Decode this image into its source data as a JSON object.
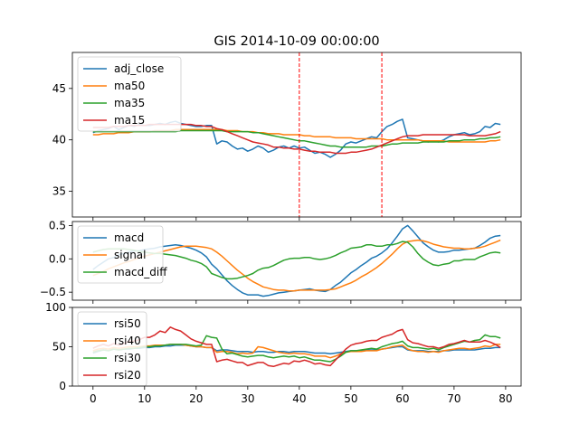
{
  "title": "GIS 2014-10-09 00:00:00",
  "colors": {
    "blue": "#1f77b4",
    "orange": "#ff7f0e",
    "green": "#2ca02c",
    "red": "#d62728"
  },
  "chart_data": [
    {
      "type": "line",
      "panel": "price",
      "xlim": [
        -4,
        83
      ],
      "ylim": [
        32.5,
        48.5
      ],
      "yticks": [
        35,
        40,
        45
      ],
      "xticks": [
        0,
        10,
        20,
        30,
        40,
        50,
        60,
        70,
        80
      ],
      "xtick_labels_visible": false,
      "vlines": [
        40,
        56
      ],
      "vline_color": "#ff0000",
      "legend_position": "upper-left",
      "series": [
        {
          "name": "adj_close",
          "color": "#1f77b4",
          "values": [
            40.7,
            40.9,
            41.0,
            41.1,
            41.3,
            41.0,
            41.2,
            41.4,
            41.3,
            41.5,
            41.4,
            41.4,
            41.5,
            41.6,
            41.5,
            41.7,
            41.8,
            41.6,
            41.5,
            41.4,
            41.3,
            41.3,
            41.4,
            41.4,
            39.6,
            39.9,
            39.8,
            39.4,
            39.1,
            39.2,
            38.9,
            39.1,
            39.4,
            39.2,
            38.8,
            39.0,
            39.3,
            39.4,
            39.2,
            39.4,
            39.2,
            39.3,
            39.0,
            38.7,
            38.8,
            38.6,
            38.3,
            38.6,
            39.0,
            39.6,
            39.8,
            39.7,
            39.9,
            40.1,
            40.3,
            40.2,
            40.8,
            41.3,
            41.5,
            41.8,
            42.0,
            40.2,
            40.1,
            40.0,
            39.9,
            39.8,
            39.9,
            39.8,
            40.0,
            40.3,
            40.5,
            40.6,
            40.7,
            40.5,
            40.6,
            40.8,
            41.3,
            41.2,
            41.6,
            41.5
          ]
        },
        {
          "name": "ma50",
          "color": "#ff7f0e",
          "values": [
            40.5,
            40.5,
            40.6,
            40.6,
            40.6,
            40.7,
            40.7,
            40.7,
            40.8,
            40.8,
            40.8,
            40.8,
            40.9,
            40.9,
            40.9,
            40.9,
            41.0,
            41.0,
            41.0,
            41.0,
            41.0,
            41.0,
            41.0,
            41.0,
            41.0,
            41.0,
            40.9,
            40.9,
            40.9,
            40.8,
            40.8,
            40.8,
            40.7,
            40.7,
            40.6,
            40.6,
            40.6,
            40.5,
            40.5,
            40.5,
            40.5,
            40.4,
            40.4,
            40.3,
            40.3,
            40.3,
            40.3,
            40.2,
            40.2,
            40.2,
            40.2,
            40.1,
            40.1,
            40.1,
            40.1,
            40.1,
            40.1,
            40.0,
            40.0,
            40.0,
            40.0,
            40.0,
            40.0,
            40.0,
            39.9,
            39.9,
            39.9,
            39.9,
            39.9,
            39.8,
            39.8,
            39.8,
            39.8,
            39.8,
            39.8,
            39.8,
            39.8,
            39.9,
            39.9,
            40.0
          ]
        },
        {
          "name": "ma35",
          "color": "#2ca02c",
          "values": [
            40.8,
            40.8,
            40.8,
            40.8,
            40.8,
            40.8,
            40.8,
            40.8,
            40.8,
            40.8,
            40.8,
            40.8,
            40.8,
            40.8,
            40.8,
            40.8,
            40.8,
            40.9,
            40.9,
            40.9,
            40.9,
            40.9,
            40.9,
            40.9,
            40.9,
            40.9,
            40.8,
            40.8,
            40.8,
            40.8,
            40.8,
            40.7,
            40.7,
            40.6,
            40.5,
            40.4,
            40.3,
            40.2,
            40.1,
            40.0,
            39.9,
            39.9,
            39.8,
            39.7,
            39.6,
            39.5,
            39.4,
            39.4,
            39.3,
            39.3,
            39.3,
            39.3,
            39.3,
            39.3,
            39.4,
            39.4,
            39.4,
            39.5,
            39.6,
            39.6,
            39.7,
            39.7,
            39.7,
            39.7,
            39.8,
            39.8,
            39.8,
            39.8,
            39.8,
            39.9,
            39.9,
            39.9,
            40.0,
            40.0,
            40.0,
            40.1,
            40.1,
            40.2,
            40.2,
            40.3
          ]
        },
        {
          "name": "ma15",
          "color": "#d62728",
          "values": [
            41.2,
            41.2,
            41.2,
            41.2,
            41.3,
            41.3,
            41.3,
            41.4,
            41.4,
            41.4,
            41.4,
            41.5,
            41.5,
            41.5,
            41.5,
            41.5,
            41.5,
            41.5,
            41.5,
            41.5,
            41.4,
            41.4,
            41.3,
            41.3,
            41.1,
            41.0,
            40.8,
            40.6,
            40.4,
            40.2,
            40.0,
            39.8,
            39.7,
            39.6,
            39.5,
            39.3,
            39.3,
            39.2,
            39.2,
            39.1,
            39.1,
            39.0,
            38.9,
            38.9,
            38.8,
            38.8,
            38.8,
            38.7,
            38.7,
            38.7,
            38.8,
            38.8,
            38.9,
            39.0,
            39.1,
            39.3,
            39.5,
            39.7,
            39.9,
            40.1,
            40.3,
            40.4,
            40.4,
            40.4,
            40.5,
            40.5,
            40.5,
            40.5,
            40.5,
            40.5,
            40.5,
            40.5,
            40.5,
            40.4,
            40.4,
            40.4,
            40.4,
            40.5,
            40.6,
            40.8
          ]
        }
      ]
    },
    {
      "type": "line",
      "panel": "macd",
      "xlim": [
        -4,
        83
      ],
      "ylim": [
        -0.62,
        0.56
      ],
      "yticks": [
        -0.5,
        0.0,
        0.5
      ],
      "ytick_labels": [
        "−0.5",
        "0.0",
        "0.5"
      ],
      "xticks": [
        0,
        10,
        20,
        30,
        40,
        50,
        60,
        70,
        80
      ],
      "xtick_labels_visible": false,
      "legend_position": "upper-left",
      "series": [
        {
          "name": "macd",
          "color": "#1f77b4",
          "values": [
            -0.16,
            -0.1,
            -0.05,
            0.0,
            0.02,
            0.06,
            0.08,
            0.1,
            0.12,
            0.12,
            0.14,
            0.15,
            0.16,
            0.18,
            0.19,
            0.2,
            0.21,
            0.2,
            0.18,
            0.16,
            0.13,
            0.09,
            0.03,
            -0.08,
            -0.15,
            -0.24,
            -0.33,
            -0.4,
            -0.46,
            -0.51,
            -0.54,
            -0.54,
            -0.54,
            -0.56,
            -0.55,
            -0.53,
            -0.51,
            -0.5,
            -0.49,
            -0.48,
            -0.47,
            -0.46,
            -0.45,
            -0.47,
            -0.48,
            -0.49,
            -0.46,
            -0.4,
            -0.35,
            -0.28,
            -0.21,
            -0.16,
            -0.1,
            -0.05,
            0.01,
            0.04,
            0.09,
            0.15,
            0.24,
            0.34,
            0.45,
            0.5,
            0.42,
            0.33,
            0.24,
            0.18,
            0.13,
            0.1,
            0.1,
            0.11,
            0.13,
            0.13,
            0.14,
            0.15,
            0.16,
            0.2,
            0.25,
            0.31,
            0.34,
            0.35
          ]
        },
        {
          "name": "signal",
          "color": "#ff7f0e",
          "values": [
            -0.25,
            -0.22,
            -0.19,
            -0.15,
            -0.12,
            -0.09,
            -0.06,
            -0.04,
            -0.01,
            0.02,
            0.04,
            0.06,
            0.08,
            0.1,
            0.12,
            0.14,
            0.16,
            0.18,
            0.19,
            0.19,
            0.19,
            0.18,
            0.17,
            0.15,
            0.1,
            0.04,
            -0.03,
            -0.1,
            -0.17,
            -0.23,
            -0.29,
            -0.34,
            -0.38,
            -0.42,
            -0.44,
            -0.46,
            -0.47,
            -0.47,
            -0.48,
            -0.48,
            -0.47,
            -0.47,
            -0.47,
            -0.47,
            -0.47,
            -0.47,
            -0.46,
            -0.45,
            -0.42,
            -0.39,
            -0.36,
            -0.32,
            -0.27,
            -0.23,
            -0.18,
            -0.13,
            -0.07,
            0.0,
            0.07,
            0.15,
            0.22,
            0.26,
            0.27,
            0.28,
            0.27,
            0.25,
            0.22,
            0.2,
            0.18,
            0.17,
            0.16,
            0.16,
            0.15,
            0.15,
            0.16,
            0.17,
            0.19,
            0.22,
            0.25,
            0.28
          ]
        },
        {
          "name": "macd_diff",
          "color": "#2ca02c",
          "values": [
            0.1,
            0.12,
            0.14,
            0.15,
            0.15,
            0.15,
            0.15,
            0.14,
            0.13,
            0.11,
            0.1,
            0.09,
            0.08,
            0.08,
            0.07,
            0.06,
            0.05,
            0.03,
            0.01,
            -0.02,
            -0.04,
            -0.07,
            -0.12,
            -0.22,
            -0.25,
            -0.28,
            -0.3,
            -0.3,
            -0.29,
            -0.27,
            -0.25,
            -0.22,
            -0.17,
            -0.14,
            -0.13,
            -0.1,
            -0.06,
            -0.02,
            0.0,
            0.01,
            0.01,
            0.02,
            0.02,
            0.0,
            -0.01,
            0.0,
            0.02,
            0.05,
            0.09,
            0.12,
            0.16,
            0.17,
            0.18,
            0.21,
            0.21,
            0.19,
            0.19,
            0.21,
            0.21,
            0.23,
            0.26,
            0.25,
            0.18,
            0.08,
            0.0,
            -0.05,
            -0.09,
            -0.1,
            -0.08,
            -0.07,
            -0.03,
            -0.03,
            -0.01,
            -0.01,
            -0.01,
            0.03,
            0.06,
            0.09,
            0.1,
            0.09
          ]
        }
      ]
    },
    {
      "type": "line",
      "panel": "rsi",
      "xlim": [
        -4,
        83
      ],
      "ylim": [
        0,
        100
      ],
      "yticks": [
        0,
        50,
        100
      ],
      "xticks": [
        0,
        10,
        20,
        30,
        40,
        50,
        60,
        70,
        80
      ],
      "xtick_labels": [
        "0",
        "10",
        "20",
        "30",
        "40",
        "50",
        "60",
        "70",
        "80"
      ],
      "legend_position": "upper-left",
      "series": [
        {
          "name": "rsi50",
          "color": "#1f77b4",
          "values": [
            42,
            44,
            46,
            45,
            47,
            46,
            47,
            47,
            48,
            48,
            49,
            49,
            50,
            50,
            51,
            51,
            52,
            52,
            52,
            51,
            50,
            50,
            49,
            49,
            45,
            46,
            46,
            45,
            44,
            44,
            44,
            43,
            44,
            44,
            43,
            43,
            44,
            44,
            43,
            44,
            44,
            44,
            43,
            42,
            42,
            42,
            41,
            42,
            43,
            44,
            45,
            45,
            45,
            46,
            46,
            46,
            47,
            48,
            49,
            50,
            50,
            46,
            45,
            45,
            45,
            44,
            44,
            44,
            45,
            45,
            46,
            46,
            46,
            46,
            46,
            47,
            48,
            48,
            49,
            49
          ]
        },
        {
          "name": "rsi40",
          "color": "#ff7f0e",
          "values": [
            45,
            47,
            48,
            47,
            49,
            48,
            49,
            50,
            50,
            50,
            51,
            51,
            52,
            52,
            52,
            53,
            53,
            53,
            52,
            51,
            50,
            50,
            49,
            49,
            43,
            44,
            44,
            43,
            41,
            42,
            41,
            42,
            50,
            49,
            47,
            45,
            43,
            42,
            41,
            42,
            41,
            41,
            40,
            38,
            38,
            38,
            36,
            38,
            41,
            43,
            44,
            44,
            44,
            45,
            45,
            45,
            47,
            48,
            50,
            51,
            52,
            47,
            45,
            44,
            44,
            43,
            44,
            43,
            45,
            46,
            47,
            48,
            48,
            47,
            48,
            49,
            51,
            50,
            53,
            53
          ]
        },
        {
          "name": "rsi30",
          "color": "#2ca02c",
          "values": [
            43,
            45,
            46,
            45,
            47,
            46,
            47,
            48,
            48,
            49,
            50,
            50,
            51,
            51,
            52,
            53,
            53,
            53,
            53,
            52,
            51,
            52,
            64,
            62,
            61,
            47,
            41,
            42,
            40,
            38,
            37,
            38,
            39,
            39,
            37,
            36,
            37,
            38,
            37,
            38,
            36,
            37,
            35,
            33,
            33,
            32,
            31,
            34,
            38,
            43,
            45,
            45,
            46,
            47,
            48,
            47,
            50,
            52,
            54,
            55,
            57,
            51,
            49,
            49,
            48,
            47,
            48,
            46,
            49,
            51,
            53,
            55,
            57,
            56,
            58,
            59,
            65,
            63,
            63,
            61
          ]
        },
        {
          "name": "rsi20",
          "color": "#d62728",
          "values": [
            48,
            51,
            53,
            51,
            54,
            52,
            54,
            57,
            57,
            59,
            62,
            62,
            65,
            70,
            68,
            75,
            72,
            70,
            65,
            60,
            57,
            55,
            53,
            53,
            31,
            33,
            34,
            32,
            30,
            30,
            26,
            28,
            30,
            30,
            26,
            25,
            27,
            29,
            28,
            32,
            31,
            33,
            31,
            28,
            29,
            27,
            26,
            33,
            40,
            47,
            52,
            54,
            55,
            57,
            58,
            58,
            62,
            64,
            66,
            70,
            72,
            59,
            55,
            54,
            52,
            50,
            50,
            48,
            50,
            53,
            54,
            56,
            58,
            56,
            56,
            56,
            58,
            56,
            53,
            49
          ]
        }
      ]
    }
  ]
}
